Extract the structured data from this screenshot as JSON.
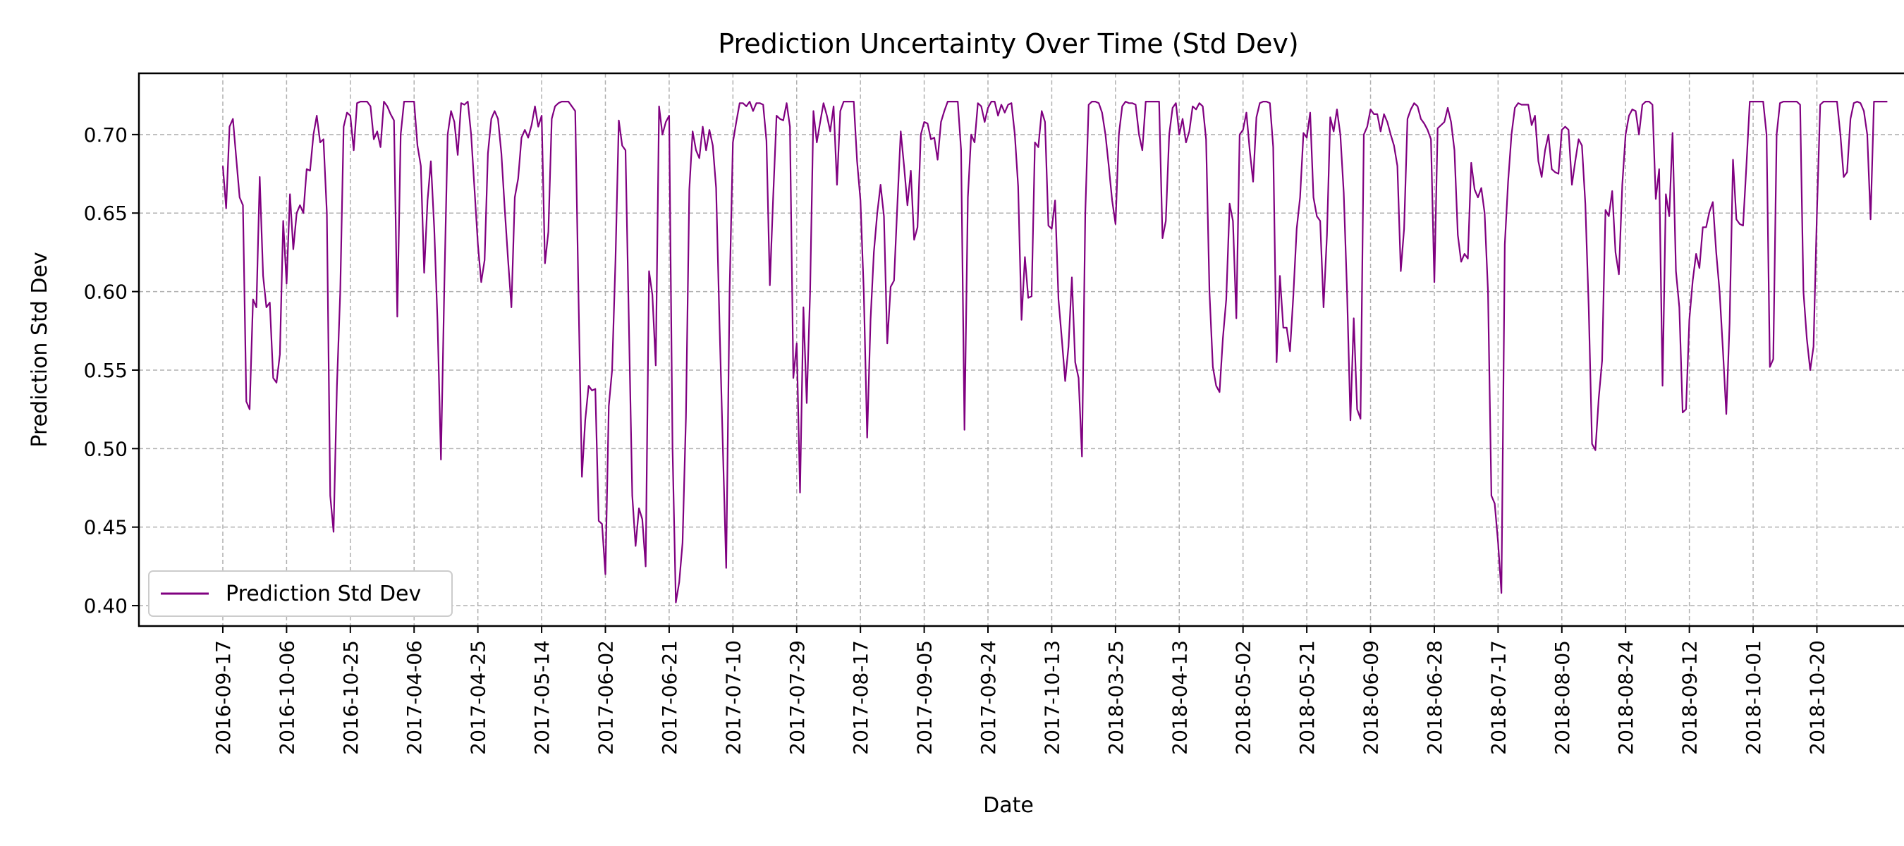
{
  "chart_data": {
    "type": "line",
    "title": "Prediction Uncertainty Over Time (Std Dev)",
    "xlabel": "Date",
    "ylabel": "Prediction Std Dev",
    "ylim": [
      0.387,
      0.739
    ],
    "y_ticks": [
      0.4,
      0.45,
      0.5,
      0.55,
      0.6,
      0.65,
      0.7
    ],
    "y_tick_labels": [
      "0.40",
      "0.45",
      "0.50",
      "0.55",
      "0.60",
      "0.65",
      "0.70"
    ],
    "x_tick_labels": [
      "2016-09-17",
      "2016-10-06",
      "2016-10-25",
      "2017-04-06",
      "2017-04-25",
      "2017-05-14",
      "2017-06-02",
      "2017-06-21",
      "2017-07-10",
      "2017-07-29",
      "2017-08-17",
      "2017-09-05",
      "2017-09-24",
      "2017-10-13",
      "2018-03-25",
      "2018-04-13",
      "2018-05-02",
      "2018-05-21",
      "2018-06-09",
      "2018-06-28",
      "2018-07-17",
      "2018-08-05",
      "2018-08-24",
      "2018-09-12",
      "2018-10-01",
      "2018-10-20"
    ],
    "x_tick_index": [
      0,
      19,
      38,
      57,
      76,
      95,
      114,
      133,
      152,
      171,
      190,
      209,
      228,
      247,
      266,
      285,
      304,
      323,
      342,
      361,
      380,
      399,
      418,
      437,
      456,
      475
    ],
    "x_index_range": [
      -25,
      506
    ],
    "grid": true,
    "legend_position": "lower-left",
    "series": [
      {
        "name": "Prediction Std Dev",
        "color": "#800080",
        "values": [
          0.68,
          0.653,
          0.705,
          0.71,
          0.685,
          0.66,
          0.655,
          0.53,
          0.525,
          0.595,
          0.59,
          0.673,
          0.61,
          0.59,
          0.593,
          0.545,
          0.542,
          0.56,
          0.645,
          0.605,
          0.662,
          0.627,
          0.65,
          0.655,
          0.65,
          0.678,
          0.677,
          0.7,
          0.712,
          0.695,
          0.697,
          0.65,
          0.47,
          0.447,
          0.54,
          0.6,
          0.705,
          0.714,
          0.712,
          0.69,
          0.72,
          0.721,
          0.721,
          0.721,
          0.718,
          0.697,
          0.702,
          0.692,
          0.721,
          0.718,
          0.713,
          0.709,
          0.584,
          0.7,
          0.721,
          0.721,
          0.721,
          0.721,
          0.693,
          0.68,
          0.612,
          0.658,
          0.683,
          0.64,
          0.58,
          0.493,
          0.604,
          0.7,
          0.715,
          0.708,
          0.687,
          0.72,
          0.719,
          0.721,
          0.7,
          0.665,
          0.63,
          0.606,
          0.62,
          0.688,
          0.71,
          0.715,
          0.71,
          0.688,
          0.653,
          0.62,
          0.59,
          0.66,
          0.672,
          0.698,
          0.703,
          0.698,
          0.706,
          0.718,
          0.705,
          0.712,
          0.618,
          0.638,
          0.71,
          0.718,
          0.72,
          0.721,
          0.721,
          0.721,
          0.718,
          0.715,
          0.596,
          0.482,
          0.518,
          0.54,
          0.537,
          0.538,
          0.454,
          0.452,
          0.42,
          0.527,
          0.55,
          0.62,
          0.709,
          0.693,
          0.69,
          0.58,
          0.47,
          0.438,
          0.462,
          0.455,
          0.425,
          0.613,
          0.598,
          0.553,
          0.718,
          0.7,
          0.708,
          0.712,
          0.5,
          0.402,
          0.415,
          0.44,
          0.52,
          0.665,
          0.702,
          0.69,
          0.685,
          0.705,
          0.69,
          0.703,
          0.693,
          0.666,
          0.58,
          0.5,
          0.424,
          0.6,
          0.695,
          0.708,
          0.72,
          0.72,
          0.718,
          0.721,
          0.715,
          0.72,
          0.72,
          0.719,
          0.696,
          0.604,
          0.66,
          0.712,
          0.71,
          0.709,
          0.72,
          0.705,
          0.545,
          0.567,
          0.472,
          0.59,
          0.529,
          0.6,
          0.715,
          0.695,
          0.708,
          0.72,
          0.712,
          0.702,
          0.718,
          0.668,
          0.715,
          0.721,
          0.721,
          0.721,
          0.721,
          0.683,
          0.658,
          0.6,
          0.507,
          0.582,
          0.625,
          0.65,
          0.668,
          0.648,
          0.567,
          0.603,
          0.607,
          0.655,
          0.702,
          0.68,
          0.655,
          0.677,
          0.633,
          0.641,
          0.7,
          0.708,
          0.707,
          0.697,
          0.698,
          0.684,
          0.708,
          0.715,
          0.721,
          0.721,
          0.721,
          0.721,
          0.69,
          0.512,
          0.66,
          0.7,
          0.695,
          0.72,
          0.718,
          0.708,
          0.717,
          0.721,
          0.721,
          0.712,
          0.719,
          0.714,
          0.719,
          0.72,
          0.7,
          0.667,
          0.582,
          0.622,
          0.596,
          0.597,
          0.695,
          0.692,
          0.715,
          0.708,
          0.642,
          0.64,
          0.658,
          0.595,
          0.57,
          0.543,
          0.565,
          0.609,
          0.555,
          0.545,
          0.495,
          0.65,
          0.719,
          0.721,
          0.721,
          0.72,
          0.714,
          0.7,
          0.68,
          0.658,
          0.643,
          0.7,
          0.718,
          0.721,
          0.72,
          0.72,
          0.719,
          0.7,
          0.69,
          0.721,
          0.721,
          0.721,
          0.721,
          0.721,
          0.634,
          0.645,
          0.7,
          0.717,
          0.72,
          0.7,
          0.71,
          0.695,
          0.702,
          0.718,
          0.716,
          0.72,
          0.718,
          0.697,
          0.6,
          0.552,
          0.54,
          0.536,
          0.57,
          0.595,
          0.656,
          0.645,
          0.583,
          0.7,
          0.703,
          0.714,
          0.69,
          0.67,
          0.711,
          0.72,
          0.721,
          0.721,
          0.72,
          0.692,
          0.555,
          0.61,
          0.577,
          0.577,
          0.562,
          0.598,
          0.64,
          0.66,
          0.701,
          0.698,
          0.714,
          0.66,
          0.648,
          0.645,
          0.59,
          0.636,
          0.711,
          0.702,
          0.716,
          0.7,
          0.663,
          0.6,
          0.518,
          0.583,
          0.525,
          0.519,
          0.7,
          0.705,
          0.716,
          0.713,
          0.713,
          0.702,
          0.713,
          0.708,
          0.7,
          0.693,
          0.68,
          0.613,
          0.64,
          0.71,
          0.716,
          0.72,
          0.718,
          0.71,
          0.707,
          0.703,
          0.697,
          0.606,
          0.704,
          0.706,
          0.708,
          0.717,
          0.708,
          0.69,
          0.636,
          0.619,
          0.624,
          0.621,
          0.682,
          0.665,
          0.66,
          0.666,
          0.65,
          0.6,
          0.47,
          0.465,
          0.44,
          0.408,
          0.63,
          0.67,
          0.7,
          0.717,
          0.72,
          0.719,
          0.719,
          0.719,
          0.706,
          0.712,
          0.683,
          0.673,
          0.69,
          0.7,
          0.678,
          0.676,
          0.675,
          0.703,
          0.705,
          0.703,
          0.668,
          0.683,
          0.697,
          0.693,
          0.656,
          0.59,
          0.503,
          0.499,
          0.532,
          0.556,
          0.652,
          0.648,
          0.664,
          0.625,
          0.611,
          0.668,
          0.7,
          0.712,
          0.716,
          0.715,
          0.7,
          0.719,
          0.721,
          0.721,
          0.719,
          0.659,
          0.678,
          0.54,
          0.662,
          0.648,
          0.701,
          0.613,
          0.59,
          0.523,
          0.525,
          0.582,
          0.607,
          0.624,
          0.615,
          0.641,
          0.641,
          0.651,
          0.657,
          0.625,
          0.6,
          0.563,
          0.522,
          0.58,
          0.684,
          0.646,
          0.643,
          0.642,
          0.68,
          0.721,
          0.721,
          0.721,
          0.721,
          0.721,
          0.7,
          0.552,
          0.557,
          0.7,
          0.72,
          0.721,
          0.721,
          0.721,
          0.721,
          0.721,
          0.719,
          0.6,
          0.57,
          0.55,
          0.565,
          0.65,
          0.719,
          0.721,
          0.721,
          0.721,
          0.721,
          0.721,
          0.7,
          0.673,
          0.676,
          0.71,
          0.72,
          0.721,
          0.72,
          0.715,
          0.7,
          0.646,
          0.721,
          0.721,
          0.721,
          0.721,
          0.721
        ]
      }
    ]
  }
}
